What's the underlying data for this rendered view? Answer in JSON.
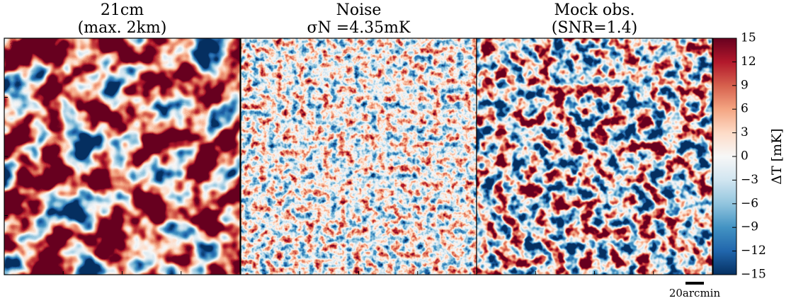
{
  "chart_data": {
    "type": "image",
    "panels": [
      {
        "title": "21cm",
        "subtitle": "(max. 2km)"
      },
      {
        "title": "Noise",
        "subtitle": "σN =4.35mK"
      },
      {
        "title": "Mock obs.",
        "subtitle": "(SNR=1.4)"
      }
    ],
    "colorbar": {
      "label": "ΔT [mK]",
      "lim": [
        -15,
        15
      ],
      "ticks": [
        {
          "value": -15,
          "label": "−15"
        },
        {
          "value": -12,
          "label": "−12"
        },
        {
          "value": -9,
          "label": "−9"
        },
        {
          "value": -6,
          "label": "−6"
        },
        {
          "value": -3,
          "label": "−3"
        },
        0,
        3,
        6,
        9,
        12,
        15
      ],
      "colors": [
        "#053061",
        "#2166ac",
        "#4393c3",
        "#92c5de",
        "#d1e5f0",
        "#f7f7f7",
        "#fddbc7",
        "#f4a582",
        "#d6604d",
        "#b2182b",
        "#67001f"
      ]
    },
    "scale_bar": "20arcmin"
  }
}
